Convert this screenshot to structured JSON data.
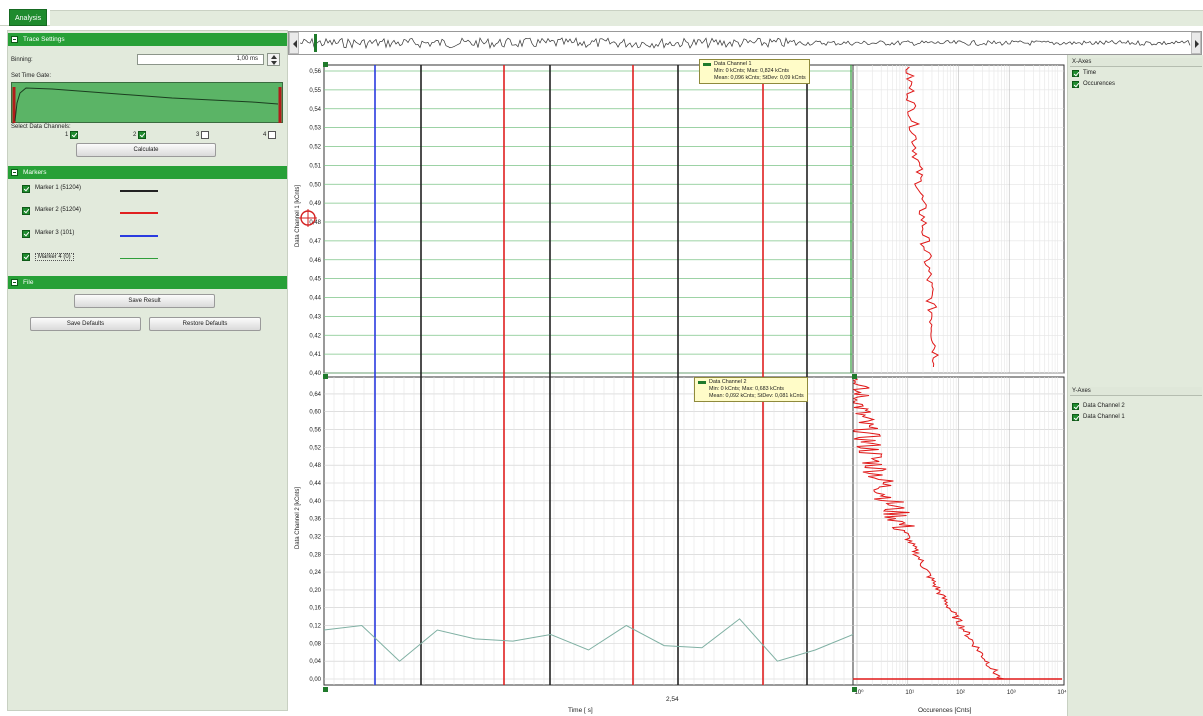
{
  "tabs": {
    "active": "Analysis"
  },
  "trace_settings": {
    "title": "Trace Settings",
    "binning_label": "Binning:",
    "binning_value": "1,00 ms",
    "time_gate_label": "Set Time Gate:",
    "channels_label": "Select Data Channels:",
    "channels": [
      {
        "label": "1",
        "checked": true
      },
      {
        "label": "2",
        "checked": true
      },
      {
        "label": "3",
        "checked": false
      },
      {
        "label": "4",
        "checked": false
      }
    ],
    "calculate_label": "Calculate"
  },
  "markers": {
    "title": "Markers",
    "items": [
      {
        "label": "Marker 1 (51204)",
        "color": "#222222"
      },
      {
        "label": "Marker 2 (51204)",
        "color": "#e02020"
      },
      {
        "label": "Marker 3 (101)",
        "color": "#2a3be0"
      },
      {
        "label": "Marker 4 (0)",
        "color": "#2f9e3a"
      }
    ]
  },
  "file": {
    "title": "File",
    "save_result": "Save Result",
    "save_defaults": "Save Defaults",
    "restore_defaults": "Restore Defaults"
  },
  "x_axes_panel": {
    "title": "X-Axes",
    "items": [
      "Time",
      "Occurences"
    ]
  },
  "y_axes_panel": {
    "title": "Y-Axes",
    "items": [
      "Data Channel 2",
      "Data Channel 1"
    ]
  },
  "tooltips": {
    "ch1": {
      "title": "Data Channel 1",
      "line1": "Min: 0 kCnts; Max: 0,824 kCnts",
      "line2": "Mean: 0,096 kCnts; StDev: 0,09 kCnts"
    },
    "ch2": {
      "title": "Data Channel 2",
      "line1": "Min: 0 kCnts; Max: 0,683 kCnts",
      "line2": "Mean: 0,092 kCnts; StDev: 0,081 kCnts"
    }
  },
  "axes": {
    "time_label": "Time [ s]",
    "time_tick": "2,54",
    "occ_label": "Occurences [Cnts]",
    "ch1_ylabel": "Data Channel 1 [kCnts]",
    "ch2_ylabel": "Data Channel 2 [kCnts]"
  },
  "colors": {
    "accent": "#27a037",
    "panel": "#e2eadc",
    "marker_black": "#222222",
    "marker_red": "#e02020",
    "marker_blue": "#2a3be0",
    "marker_green": "#2f9e3a",
    "trace": "#e01818"
  },
  "chart_data": [
    {
      "type": "line",
      "title": "Data Channel 1",
      "xlabel": "Time [ s]",
      "ylabel": "Data Channel 1 [kCnts]",
      "ylim": [
        0.4,
        0.56
      ],
      "yticks": [
        "0,40",
        "0,41",
        "0,42",
        "0,43",
        "0,44",
        "0,45",
        "0,46",
        "0,47",
        "0,48",
        "0,49",
        "0,50",
        "0,51",
        "0,52",
        "0,53",
        "0,54",
        "0,55",
        "0,56"
      ],
      "x_tick_labels": [
        "2,54"
      ],
      "grid": true
    },
    {
      "type": "line",
      "title": "Data Channel 2",
      "xlabel": "Time [ s]",
      "ylabel": "Data Channel 2 [kCnts]",
      "ylim": [
        0.0,
        0.66
      ],
      "yticks": [
        "0,00",
        "0,04",
        "0,08",
        "0,12",
        "0,16",
        "0,20",
        "0,24",
        "0,28",
        "0,32",
        "0,36",
        "0,40",
        "0,44",
        "0,48",
        "0,52",
        "0,56",
        "0,60",
        "0,64"
      ],
      "x_tick_labels": [
        "2,54"
      ],
      "series": [
        {
          "values": [
            0.11,
            0.12,
            0.04,
            0.11,
            0.09,
            0.085,
            0.1,
            0.065,
            0.12,
            0.075,
            0.07,
            0.135,
            0.04,
            0.065,
            0.1
          ]
        }
      ],
      "grid": true
    },
    {
      "type": "line",
      "title": "Occurences",
      "xlabel": "Occurences [Cnts]",
      "x_scale": "log",
      "xticks": [
        "10⁰",
        "10¹",
        "10²",
        "10³",
        "10⁴"
      ],
      "grid": true
    }
  ]
}
